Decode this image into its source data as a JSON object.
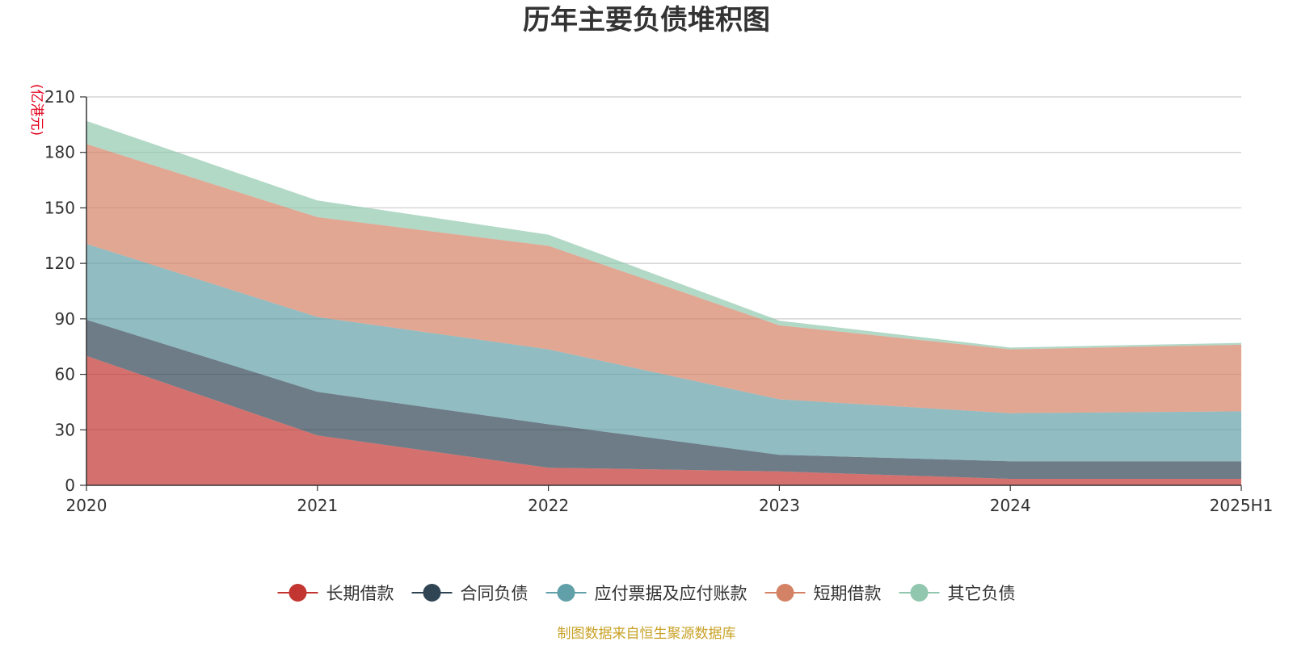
{
  "chart_data": {
    "type": "area",
    "stacked": true,
    "title": "历年主要负债堆积图",
    "unit_label": "(亿港元)",
    "categories": [
      "2020",
      "2021",
      "2022",
      "2023",
      "2024",
      "2025H1"
    ],
    "ylim": [
      0,
      210
    ],
    "yticks": [
      0,
      30,
      60,
      90,
      120,
      150,
      180,
      210
    ],
    "grid": true,
    "legend_position": "bottom",
    "series": [
      {
        "name": "长期借款",
        "color": "#c23531",
        "values": [
          70,
          27,
          9.5,
          7.5,
          3.5,
          3.5
        ]
      },
      {
        "name": "合同负债",
        "color": "#2f4554",
        "values": [
          19.5,
          23.5,
          23.5,
          9,
          9.5,
          9.5
        ]
      },
      {
        "name": "应付票据及应付账款",
        "color": "#61a0a8",
        "values": [
          41,
          40.5,
          40.5,
          30,
          26,
          27
        ]
      },
      {
        "name": "短期借款",
        "color": "#d48265",
        "values": [
          54,
          54,
          56,
          40,
          34.5,
          36
        ]
      },
      {
        "name": "其它负债",
        "color": "#91c7ae",
        "values": [
          12.5,
          9,
          6,
          2.5,
          1,
          1
        ]
      }
    ],
    "source_note": "制图数据来自恒生聚源数据库"
  }
}
